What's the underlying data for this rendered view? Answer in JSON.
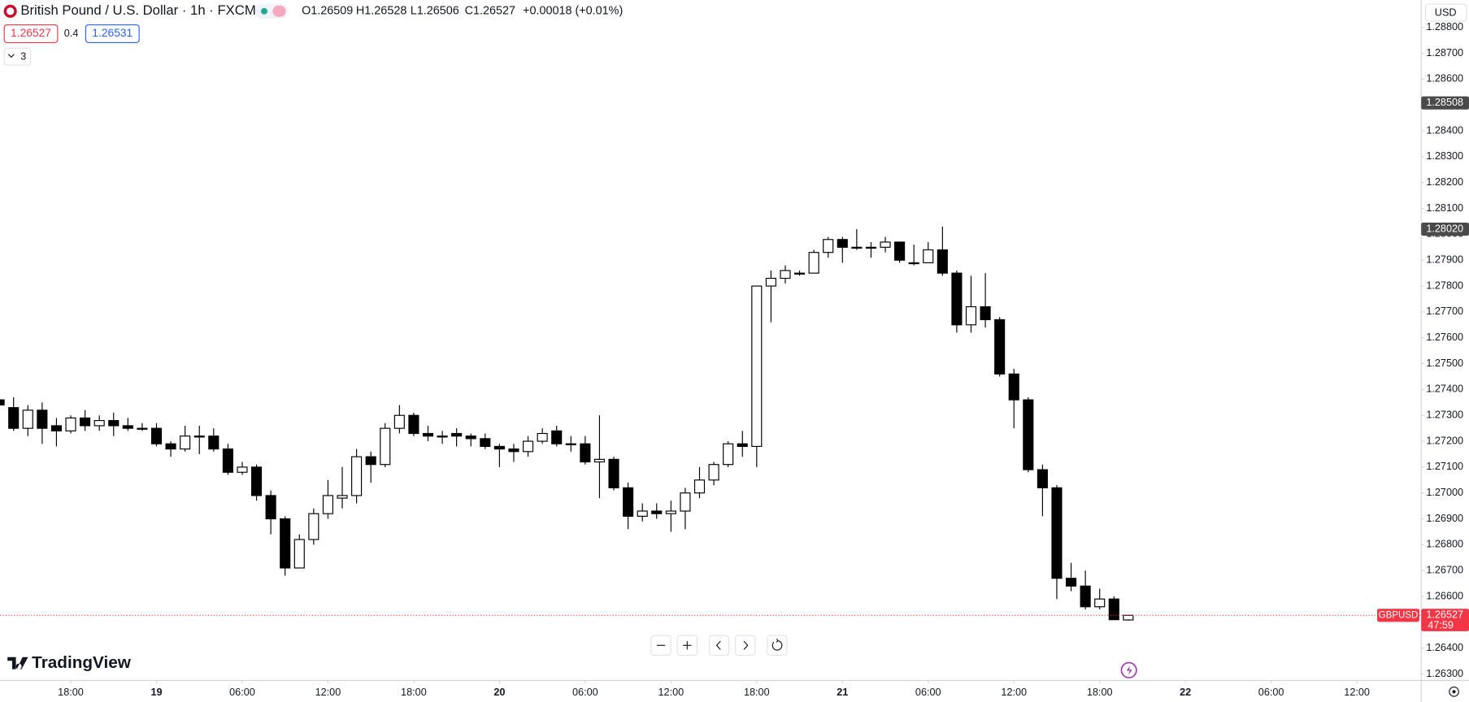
{
  "header": {
    "title": "British Pound / U.S. Dollar · 1h · FXCM",
    "ohlc": [
      "O1.26509",
      "H1.26528",
      "L1.26506",
      "C1.26527",
      "+0.00018 (+0.01%)"
    ],
    "sell": "1.26527",
    "spread": "0.4",
    "buy": "1.26531",
    "indicators": "3",
    "currency": "USD",
    "brand": "TradingView"
  },
  "chart_data": {
    "type": "candlestick",
    "grid": false,
    "up_color": "#ffffff",
    "down_color": "#000000",
    "wick_color": "#000000",
    "x": [
      -11,
      -10,
      -9,
      -8,
      -7,
      -6,
      -5,
      -4,
      -3,
      -2,
      -1,
      0,
      1,
      2,
      3,
      4,
      5,
      6,
      7,
      8,
      9,
      10,
      11,
      12,
      13,
      14,
      15,
      16,
      17,
      18,
      19,
      20,
      21,
      22,
      23,
      24,
      25,
      26,
      27,
      28,
      29,
      30,
      31,
      32,
      33,
      34,
      35,
      36,
      37,
      38,
      39,
      40,
      41,
      42,
      43,
      44,
      45,
      46,
      47,
      48,
      49,
      50,
      51,
      52,
      53,
      54,
      55,
      56,
      57,
      58,
      59,
      60,
      61,
      62,
      63,
      64,
      65,
      66,
      67,
      68
    ],
    "open": [
      1.2736,
      1.2733,
      1.2725,
      1.2732,
      1.2726,
      1.2724,
      1.2729,
      1.2726,
      1.2728,
      1.2726,
      1.2725,
      1.2725,
      1.2719,
      1.2717,
      1.2722,
      1.2722,
      1.2717,
      1.2708,
      1.271,
      1.2699,
      1.269,
      1.2671,
      1.2682,
      1.2692,
      1.2698,
      1.2699,
      1.2714,
      1.2711,
      1.2725,
      1.273,
      1.2723,
      1.2722,
      1.2723,
      1.2722,
      1.2721,
      1.2718,
      1.2717,
      1.2716,
      1.272,
      1.2724,
      1.2719,
      1.2719,
      1.2712,
      1.2713,
      1.2702,
      1.2691,
      1.2693,
      1.2692,
      1.2693,
      1.27,
      1.2705,
      1.2711,
      1.2719,
      1.2718,
      1.278,
      1.2783,
      1.2785,
      1.2785,
      1.2793,
      1.2798,
      1.2795,
      1.2795,
      1.2795,
      1.2797,
      1.2789,
      1.2789,
      1.2794,
      1.2785,
      1.2765,
      1.2772,
      1.2767,
      1.2746,
      1.2736,
      1.2709,
      1.2702,
      1.2667,
      1.2664,
      1.2656,
      1.2659,
      1.26509
    ],
    "high": [
      1.2738,
      1.2737,
      1.2734,
      1.2735,
      1.2729,
      1.273,
      1.2732,
      1.273,
      1.2731,
      1.2729,
      1.2727,
      1.2727,
      1.272,
      1.2726,
      1.2726,
      1.2725,
      1.2719,
      1.2712,
      1.2711,
      1.2701,
      1.2691,
      1.2684,
      1.2694,
      1.2705,
      1.271,
      1.2717,
      1.2716,
      1.2727,
      1.2734,
      1.2731,
      1.2726,
      1.2724,
      1.2725,
      1.2723,
      1.2723,
      1.2719,
      1.2719,
      1.2722,
      1.2725,
      1.2726,
      1.2722,
      1.2722,
      1.273,
      1.2714,
      1.2704,
      1.2696,
      1.2696,
      1.2697,
      1.2702,
      1.271,
      1.2712,
      1.272,
      1.2724,
      1.278,
      1.2786,
      1.2788,
      1.2786,
      1.2794,
      1.2799,
      1.2799,
      1.2802,
      1.2797,
      1.2799,
      1.2797,
      1.2796,
      1.2797,
      1.2803,
      1.2786,
      1.2784,
      1.2785,
      1.2768,
      1.2748,
      1.2737,
      1.2711,
      1.2703,
      1.2673,
      1.267,
      1.2663,
      1.266,
      1.26528
    ],
    "low": [
      1.2733,
      1.2724,
      1.2722,
      1.2719,
      1.2718,
      1.2723,
      1.2724,
      1.2724,
      1.2722,
      1.2724,
      1.2724,
      1.2718,
      1.2714,
      1.2716,
      1.2715,
      1.2716,
      1.2707,
      1.2707,
      1.2697,
      1.2684,
      1.2668,
      1.2671,
      1.268,
      1.269,
      1.2694,
      1.2696,
      1.2704,
      1.271,
      1.2723,
      1.2722,
      1.272,
      1.2719,
      1.2718,
      1.2718,
      1.2717,
      1.271,
      1.2712,
      1.2714,
      1.2719,
      1.2718,
      1.2716,
      1.2711,
      1.2698,
      1.2701,
      1.2686,
      1.2689,
      1.269,
      1.2685,
      1.2686,
      1.2698,
      1.2703,
      1.271,
      1.2714,
      1.271,
      1.2766,
      1.2781,
      1.2784,
      1.2785,
      1.2791,
      1.2789,
      1.2794,
      1.2791,
      1.2793,
      1.2789,
      1.2788,
      1.2789,
      1.2784,
      1.2762,
      1.2762,
      1.2764,
      1.2745,
      1.2725,
      1.2708,
      1.2691,
      1.2659,
      1.2662,
      1.2655,
      1.2655,
      1.2651,
      1.26506
    ],
    "close": [
      1.2734,
      1.2725,
      1.2732,
      1.2725,
      1.2724,
      1.2729,
      1.2726,
      1.2728,
      1.2726,
      1.2725,
      1.2725,
      1.2719,
      1.2717,
      1.2722,
      1.2722,
      1.2717,
      1.2708,
      1.271,
      1.2699,
      1.269,
      1.2671,
      1.2682,
      1.2692,
      1.2699,
      1.2699,
      1.2714,
      1.2711,
      1.2725,
      1.273,
      1.2723,
      1.2722,
      1.2722,
      1.2722,
      1.2721,
      1.2718,
      1.2717,
      1.2716,
      1.272,
      1.2723,
      1.2719,
      1.2719,
      1.2712,
      1.2713,
      1.2702,
      1.2691,
      1.2693,
      1.2692,
      1.2693,
      1.27,
      1.2705,
      1.2711,
      1.2719,
      1.2718,
      1.278,
      1.2783,
      1.2786,
      1.2785,
      1.2793,
      1.2798,
      1.2795,
      1.2795,
      1.2795,
      1.2797,
      1.279,
      1.2789,
      1.2794,
      1.2785,
      1.2765,
      1.2772,
      1.2767,
      1.2746,
      1.2736,
      1.2709,
      1.2702,
      1.2667,
      1.2664,
      1.2656,
      1.2659,
      1.2651,
      1.26527
    ],
    "xlim": [
      -10.95,
      88.5
    ],
    "xticks": [
      {
        "value": -6,
        "label": "18:00"
      },
      {
        "value": 0,
        "label": "19"
      },
      {
        "value": 6,
        "label": "06:00"
      },
      {
        "value": 12,
        "label": "12:00"
      },
      {
        "value": 18,
        "label": "18:00"
      },
      {
        "value": 24,
        "label": "20"
      },
      {
        "value": 30,
        "label": "06:00"
      },
      {
        "value": 36,
        "label": "12:00"
      },
      {
        "value": 42,
        "label": "18:00"
      },
      {
        "value": 48,
        "label": "21"
      },
      {
        "value": 54,
        "label": "06:00"
      },
      {
        "value": 60,
        "label": "12:00"
      },
      {
        "value": 66,
        "label": "18:00"
      },
      {
        "value": 72,
        "label": "22"
      },
      {
        "value": 78,
        "label": "06:00"
      },
      {
        "value": 84,
        "label": "12:00"
      }
    ],
    "ylim": [
      1.26275,
      1.28906
    ],
    "yticks": [
      {
        "value": 1.263,
        "label": "1.26300"
      },
      {
        "value": 1.264,
        "label": "1.26400"
      },
      {
        "value": 1.265,
        "label": "1.26500"
      },
      {
        "value": 1.266,
        "label": "1.26600"
      },
      {
        "value": 1.267,
        "label": "1.26700"
      },
      {
        "value": 1.268,
        "label": "1.26800"
      },
      {
        "value": 1.269,
        "label": "1.26900"
      },
      {
        "value": 1.27,
        "label": "1.27000"
      },
      {
        "value": 1.271,
        "label": "1.27100"
      },
      {
        "value": 1.272,
        "label": "1.27200"
      },
      {
        "value": 1.273,
        "label": "1.27300"
      },
      {
        "value": 1.274,
        "label": "1.27400"
      },
      {
        "value": 1.275,
        "label": "1.27500"
      },
      {
        "value": 1.276,
        "label": "1.27600"
      },
      {
        "value": 1.277,
        "label": "1.27700"
      },
      {
        "value": 1.278,
        "label": "1.27800"
      },
      {
        "value": 1.279,
        "label": "1.27900"
      },
      {
        "value": 1.28,
        "label": "1.28000"
      },
      {
        "value": 1.281,
        "label": "1.28100"
      },
      {
        "value": 1.282,
        "label": "1.28200"
      },
      {
        "value": 1.283,
        "label": "1.28300"
      },
      {
        "value": 1.284,
        "label": "1.28400"
      },
      {
        "value": 1.285,
        "label": "1.28500"
      },
      {
        "value": 1.286,
        "label": "1.28600"
      },
      {
        "value": 1.287,
        "label": "1.28700"
      },
      {
        "value": 1.288,
        "label": "1.28800"
      }
    ],
    "markers": [
      1.28508,
      {
        "value": 1.2802,
        "label": "1.28020"
      }
    ],
    "last_price": 1.26527,
    "last_color": "#f23645",
    "symbol": "GBPUSD",
    "countdown": "47:59"
  }
}
